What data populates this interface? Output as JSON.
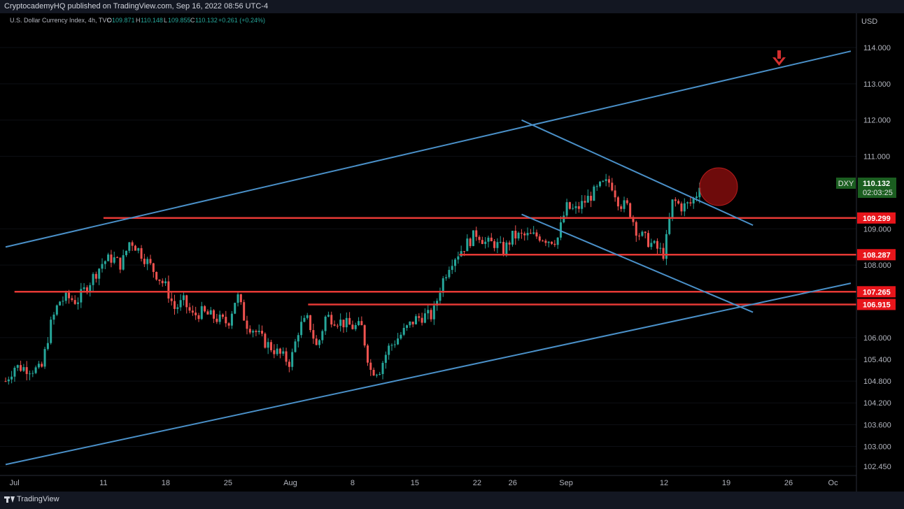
{
  "header": {
    "publisher": "CryptocademyHQ published on TradingView.com, Sep 16, 2022 08:56 UTC-4"
  },
  "footer": {
    "brand": "TradingView"
  },
  "legend": {
    "symbol": "U.S. Dollar Currency Index, 4h, TVC",
    "o_label": "O",
    "o_value": "109.871",
    "h_label": "H",
    "h_value": "110.148",
    "l_label": "L",
    "l_value": "109.855",
    "c_label": "C",
    "c_value": "110.132",
    "change": "+0.261 (+0.24%)"
  },
  "price_axis": {
    "currency": "USD",
    "ticks": [
      "114.000",
      "113.000",
      "112.000",
      "111.000",
      "109.000",
      "108.000",
      "106.000",
      "105.400",
      "104.800",
      "104.200",
      "103.600",
      "103.000",
      "102.450"
    ]
  },
  "time_axis": {
    "labels": [
      "Jul",
      "11",
      "18",
      "25",
      "Aug",
      "8",
      "15",
      "22",
      "26",
      "Sep",
      "12",
      "19",
      "26",
      "Oc"
    ]
  },
  "current_price": {
    "ticker": "DXY",
    "price": "110.132",
    "countdown": "02:03:25"
  },
  "level_tags": [
    "109.299",
    "108.287",
    "107.265",
    "106.915"
  ],
  "colors": {
    "background": "#000000",
    "up": "#26a69a",
    "down": "#ef5350",
    "trendline": "#4a90c8",
    "level_line": "#e53935",
    "current_tag": "#1b5e20",
    "level_tag": "#e8151b"
  },
  "chart_data": {
    "type": "candlestick",
    "title": "U.S. Dollar Currency Index, 4h, TVC",
    "ylabel": "USD",
    "ylim": [
      102.2,
      115.0
    ],
    "x_range": [
      "2022-06-30",
      "2022-10-03"
    ],
    "close_path": [
      [
        "2022-06-30",
        104.8
      ],
      [
        "2022-07-01",
        105.2
      ],
      [
        "2022-07-04",
        105.1
      ],
      [
        "2022-07-05",
        106.3
      ],
      [
        "2022-07-06",
        107.0
      ],
      [
        "2022-07-07",
        107.1
      ],
      [
        "2022-07-08",
        107.0
      ],
      [
        "2022-07-11",
        108.1
      ],
      [
        "2022-07-12",
        108.2
      ],
      [
        "2022-07-13",
        108.0
      ],
      [
        "2022-07-14",
        108.7
      ],
      [
        "2022-07-15",
        108.4
      ],
      [
        "2022-07-18",
        107.4
      ],
      [
        "2022-07-19",
        106.8
      ],
      [
        "2022-07-20",
        107.0
      ],
      [
        "2022-07-21",
        106.6
      ],
      [
        "2022-07-22",
        106.7
      ],
      [
        "2022-07-25",
        106.4
      ],
      [
        "2022-07-26",
        107.2
      ],
      [
        "2022-07-27",
        106.4
      ],
      [
        "2022-07-28",
        106.2
      ],
      [
        "2022-07-29",
        105.9
      ],
      [
        "2022-08-01",
        105.3
      ],
      [
        "2022-08-02",
        106.3
      ],
      [
        "2022-08-03",
        106.5
      ],
      [
        "2022-08-04",
        105.7
      ],
      [
        "2022-08-05",
        106.6
      ],
      [
        "2022-08-08",
        106.3
      ],
      [
        "2022-08-09",
        106.3
      ],
      [
        "2022-08-10",
        105.1
      ],
      [
        "2022-08-11",
        105.1
      ],
      [
        "2022-08-12",
        105.7
      ],
      [
        "2022-08-15",
        106.5
      ],
      [
        "2022-08-16",
        106.6
      ],
      [
        "2022-08-17",
        106.6
      ],
      [
        "2022-08-18",
        107.5
      ],
      [
        "2022-08-19",
        108.1
      ],
      [
        "2022-08-22",
        108.9
      ],
      [
        "2022-08-23",
        108.6
      ],
      [
        "2022-08-24",
        108.6
      ],
      [
        "2022-08-25",
        108.4
      ],
      [
        "2022-08-26",
        108.8
      ],
      [
        "2022-08-29",
        108.8
      ],
      [
        "2022-08-30",
        108.7
      ],
      [
        "2022-08-31",
        108.7
      ],
      [
        "2022-09-01",
        109.6
      ],
      [
        "2022-09-02",
        109.5
      ],
      [
        "2022-09-05",
        110.2
      ],
      [
        "2022-09-06",
        110.3
      ],
      [
        "2022-09-07",
        109.7
      ],
      [
        "2022-09-08",
        109.6
      ],
      [
        "2022-09-09",
        108.9
      ],
      [
        "2022-09-12",
        108.3
      ],
      [
        "2022-09-13",
        109.8
      ],
      [
        "2022-09-14",
        109.6
      ],
      [
        "2022-09-15",
        109.7
      ],
      [
        "2022-09-16",
        110.1
      ]
    ],
    "last": {
      "open": 109.871,
      "high": 110.148,
      "low": 109.855,
      "close": 110.132
    },
    "horizontal_levels": [
      109.299,
      108.287,
      107.265,
      106.915
    ],
    "trendlines": [
      {
        "name": "upper channel",
        "from": [
          "2022-06-30",
          108.5
        ],
        "to": [
          "2022-10-03",
          113.9
        ]
      },
      {
        "name": "lower channel",
        "from": [
          "2022-06-30",
          102.5
        ],
        "to": [
          "2022-10-03",
          107.5
        ]
      },
      {
        "name": "falling resistance",
        "from": [
          "2022-08-27",
          112.0
        ],
        "to": [
          "2022-09-22",
          109.1
        ]
      },
      {
        "name": "falling support",
        "from": [
          "2022-08-27",
          109.4
        ],
        "to": [
          "2022-09-22",
          106.7
        ]
      }
    ]
  }
}
